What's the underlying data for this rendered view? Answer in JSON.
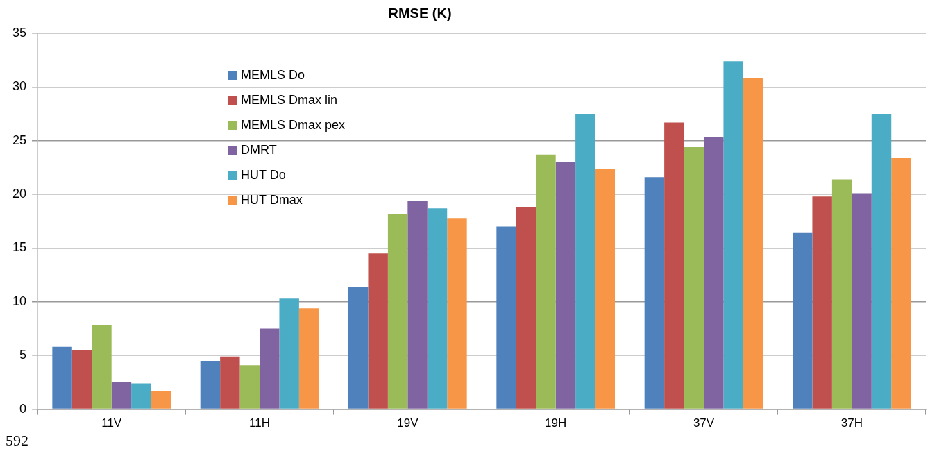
{
  "chart_data": {
    "type": "bar",
    "title": "RMSE (K)",
    "categories": [
      "11V",
      "11H",
      "19V",
      "19H",
      "37V",
      "37H"
    ],
    "series": [
      {
        "name": "MEMLS Do",
        "color": "#4f81bd",
        "values": [
          5.8,
          4.5,
          11.4,
          17.0,
          21.6,
          16.4
        ]
      },
      {
        "name": "MEMLS Dmax lin",
        "color": "#c0504d",
        "values": [
          5.5,
          4.9,
          14.5,
          18.8,
          26.7,
          19.8
        ]
      },
      {
        "name": "MEMLS Dmax pex",
        "color": "#9bbb59",
        "values": [
          7.8,
          4.1,
          18.2,
          23.7,
          24.4,
          21.4
        ]
      },
      {
        "name": "DMRT",
        "color": "#8064a2",
        "values": [
          2.5,
          7.5,
          19.4,
          23.0,
          25.3,
          20.1
        ]
      },
      {
        "name": "HUT Do",
        "color": "#4bacc6",
        "values": [
          2.4,
          10.3,
          18.7,
          27.5,
          32.4,
          27.5
        ]
      },
      {
        "name": "HUT Dmax",
        "color": "#f79646",
        "values": [
          1.7,
          9.4,
          17.8,
          22.4,
          30.8,
          23.4
        ]
      }
    ],
    "ylim": [
      0,
      35
    ],
    "yticks": [
      0,
      5,
      10,
      15,
      20,
      25,
      30,
      35
    ],
    "grid": "y",
    "legend": "top left",
    "annotations": [
      "592"
    ]
  }
}
